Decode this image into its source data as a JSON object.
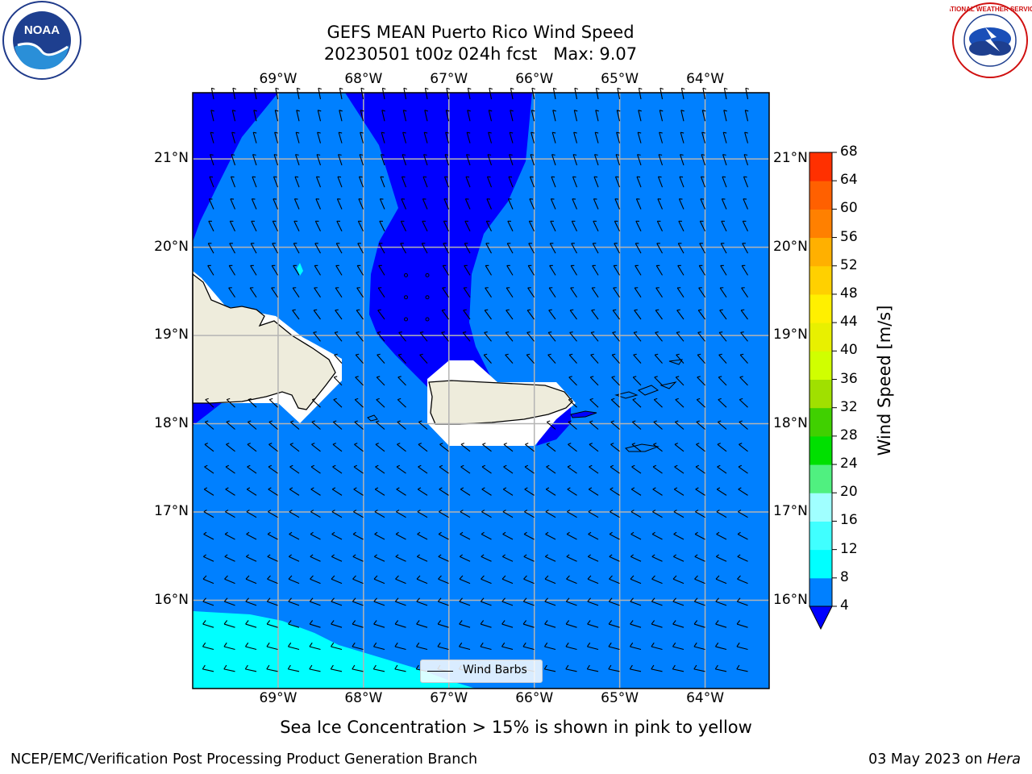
{
  "title": {
    "line1": "GEFS MEAN Puerto Rico Wind Speed",
    "line2": "20230501 t00z 024h fcst   Max: 9.07"
  },
  "logos": {
    "left": "noaa-logo",
    "right": "national-weather-service-logo",
    "right_text": "NATIONAL WEATHER SERVICE",
    "left_text": "NOAA"
  },
  "map": {
    "lon_labels": [
      "69°W",
      "68°W",
      "67°W",
      "66°W",
      "65°W",
      "64°W"
    ],
    "lon_values": [
      -69,
      -68,
      -67,
      -66,
      -65,
      -64
    ],
    "lat_labels": [
      "21°N",
      "20°N",
      "19°N",
      "18°N",
      "17°N",
      "16°N"
    ],
    "lat_values": [
      21,
      20,
      19,
      18,
      17,
      16
    ],
    "lon_range": [
      -70.0,
      -63.25
    ],
    "lat_range": [
      15.0,
      21.75
    ],
    "region_colors": {
      "4-8": "#0080ff",
      "below-4": "#0000ff",
      "8-12": "#00ffff",
      "land": "#eeecdc",
      "masked": "#ffffff"
    },
    "wind_direction": "easterly-southeasterly"
  },
  "legend": {
    "label": "Wind Barbs"
  },
  "colorbar": {
    "title": "Wind Speed [m/s]",
    "ticks": [
      "4",
      "8",
      "12",
      "16",
      "20",
      "24",
      "28",
      "32",
      "36",
      "40",
      "44",
      "48",
      "52",
      "56",
      "60",
      "64",
      "68"
    ],
    "colors": [
      "#0080ff",
      "#00ffff",
      "#40ffff",
      "#a0ffff",
      "#50f080",
      "#00e000",
      "#40d000",
      "#a0e000",
      "#d0ff00",
      "#e8f000",
      "#fff000",
      "#ffd000",
      "#ffb000",
      "#ff8000",
      "#ff6000",
      "#ff3000",
      "#ff0000"
    ],
    "extend_color": "#0000ff"
  },
  "note": "Sea Ice Concentration > 15% is shown in pink to yellow",
  "footer": {
    "left": "NCEP/EMC/Verification Post Processing Product Generation Branch",
    "date": "03 May 2023 on ",
    "host": "Hera"
  }
}
